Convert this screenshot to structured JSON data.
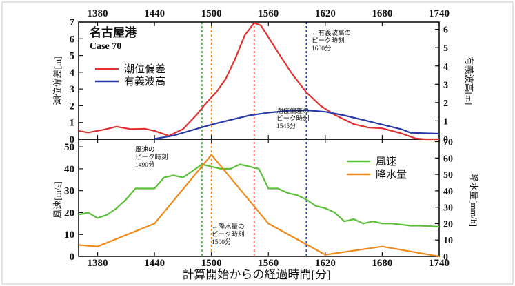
{
  "chart_data": [
    {
      "type": "line",
      "title": "名古屋港",
      "subtitle": "Case 70",
      "xlabel": "",
      "x_ticks": [
        1380,
        1440,
        1500,
        1560,
        1620,
        1680,
        1740
      ],
      "xlim": [
        1360,
        1740
      ],
      "ylabel_left": "潮位偏差[m]",
      "ylabel_right": "有義波高[m]",
      "ylim_left": [
        0,
        7
      ],
      "ylim_right": [
        0,
        6.4
      ],
      "yticks_left": [
        0,
        1,
        2,
        3,
        4,
        5,
        6,
        7
      ],
      "yticks_right": [
        0,
        1,
        2,
        3,
        4,
        5,
        6
      ],
      "series": [
        {
          "name": "潮位偏差",
          "color": "#e03030",
          "axis": "left",
          "x": [
            1360,
            1370,
            1385,
            1400,
            1415,
            1430,
            1440,
            1455,
            1470,
            1485,
            1495,
            1505,
            1515,
            1525,
            1535,
            1545,
            1552,
            1560,
            1570,
            1585,
            1600,
            1615,
            1630,
            1650,
            1665,
            1680,
            1700,
            1715,
            1725,
            1740
          ],
          "values": [
            0.5,
            0.4,
            0.55,
            0.75,
            0.6,
            0.62,
            0.5,
            0.2,
            0.6,
            1.5,
            2.2,
            2.8,
            3.6,
            4.8,
            6.2,
            6.95,
            6.8,
            6.1,
            5.2,
            3.9,
            2.8,
            2.0,
            1.45,
            0.9,
            0.7,
            0.65,
            0.35,
            0.05,
            0.0,
            0.0
          ]
        },
        {
          "name": "有義波高",
          "color": "#2a3aa8",
          "axis": "right",
          "x": [
            1440,
            1460,
            1480,
            1500,
            1520,
            1540,
            1560,
            1580,
            1600,
            1620,
            1640,
            1660,
            1680,
            1700,
            1710,
            1740
          ],
          "values": [
            0.02,
            0.2,
            0.5,
            0.8,
            1.05,
            1.3,
            1.45,
            1.55,
            1.58,
            1.5,
            1.3,
            1.05,
            0.8,
            0.55,
            0.35,
            0.3
          ]
        }
      ],
      "vlines": [
        {
          "x": 1490,
          "color": "#3aaa35"
        },
        {
          "x": 1500,
          "color": "#f08a1c"
        },
        {
          "x": 1545,
          "color": "#e03030"
        },
        {
          "x": 1600,
          "color": "#2a3aa8"
        }
      ],
      "annotations": [
        {
          "lines": [
            "←有義波高の",
            "ピーク時刻",
            "1600分"
          ]
        },
        {
          "lines": [
            "潮位偏差の",
            "ピーク時刻",
            "1545分"
          ]
        }
      ]
    },
    {
      "type": "line",
      "xlabel": "計算開始からの経過時間[分]",
      "x_ticks": [
        1380,
        1440,
        1500,
        1560,
        1620,
        1680,
        1740
      ],
      "xlim": [
        1360,
        1740
      ],
      "ylabel_left": "風速[m/s]",
      "ylabel_right": "降水量[mm/h]",
      "ylim_left": [
        0,
        53.5
      ],
      "ylim_right": [
        0,
        71.5
      ],
      "yticks_left": [
        0,
        10,
        20,
        30,
        40,
        50
      ],
      "yticks_right": [
        0,
        10,
        20,
        30,
        40,
        50,
        60,
        70
      ],
      "series": [
        {
          "name": "風速",
          "color": "#5cbf3a",
          "axis": "left",
          "x": [
            1360,
            1370,
            1380,
            1390,
            1400,
            1410,
            1420,
            1430,
            1440,
            1450,
            1460,
            1470,
            1480,
            1490,
            1500,
            1510,
            1520,
            1530,
            1540,
            1550,
            1560,
            1570,
            1580,
            1590,
            1600,
            1610,
            1620,
            1630,
            1640,
            1650,
            1660,
            1670,
            1680,
            1690,
            1700,
            1710,
            1720,
            1730,
            1740
          ],
          "values": [
            19,
            20,
            17.5,
            19,
            22,
            26,
            31,
            31,
            31,
            36,
            37,
            36,
            39,
            42,
            41,
            40,
            40,
            42,
            41,
            40,
            31,
            31,
            29,
            28,
            26,
            23,
            22,
            20,
            16,
            17,
            15,
            16,
            15,
            15,
            14.5,
            14,
            14,
            13.8,
            13.5
          ]
        },
        {
          "name": "降水量",
          "color": "#f08a1c",
          "axis": "right",
          "x": [
            1360,
            1380,
            1440,
            1500,
            1560,
            1620,
            1680,
            1740
          ],
          "values": [
            7,
            6,
            20,
            62,
            20,
            1,
            6,
            0
          ]
        }
      ],
      "vlines": [
        {
          "x": 1490,
          "color": "#3aaa35"
        },
        {
          "x": 1500,
          "color": "#f08a1c"
        },
        {
          "x": 1545,
          "color": "#e03030"
        },
        {
          "x": 1600,
          "color": "#2a3aa8"
        }
      ],
      "annotations": [
        {
          "lines": [
            "風速の",
            "ピーク時刻",
            "1490分"
          ]
        },
        {
          "lines": [
            "←降水量の",
            "ピーク時刻",
            "1500分"
          ]
        }
      ]
    }
  ]
}
